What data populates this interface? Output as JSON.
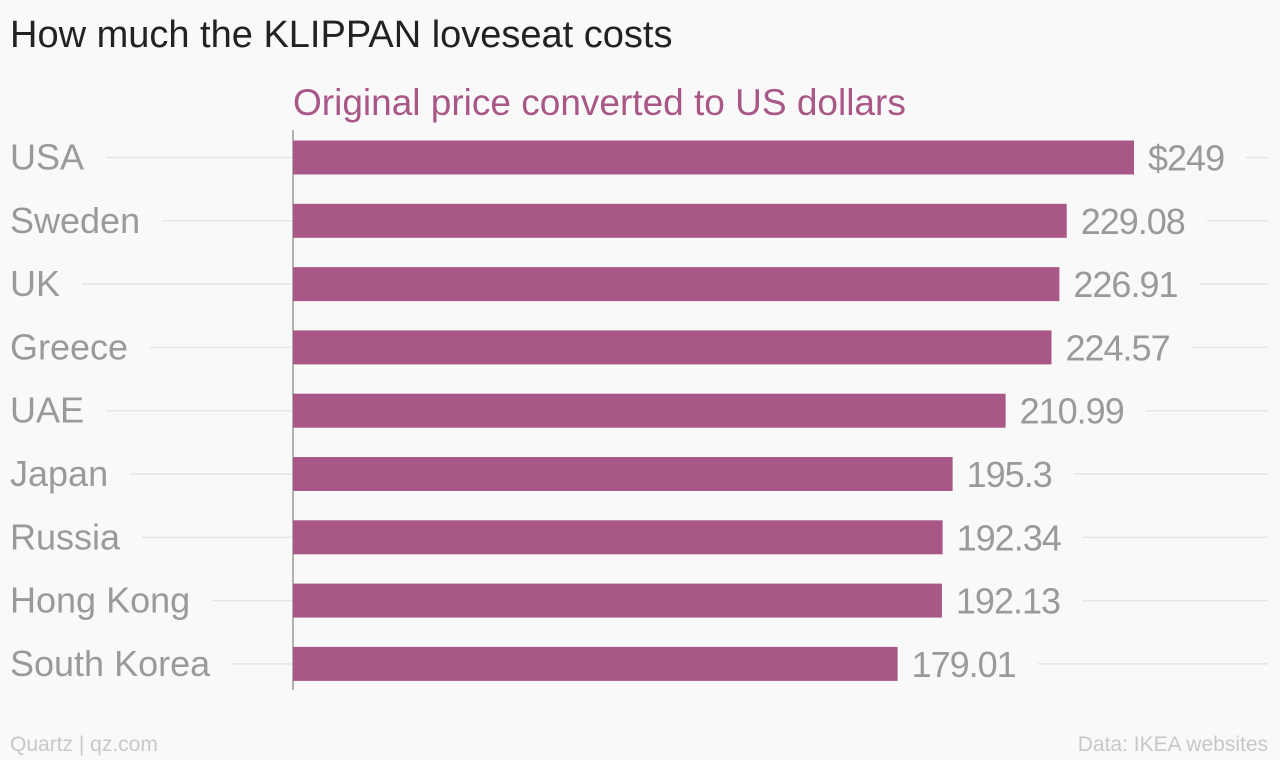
{
  "title": "How much the KLIPPAN loveseat costs",
  "footer": {
    "source": "Quartz | qz.com",
    "data_credit": "Data: IKEA websites"
  },
  "colors": {
    "bar": "#a85787",
    "series_label": "#a85787",
    "category_label": "#9a9a9a",
    "value_label": "#9a9a9a",
    "gridline": "#e6e6e6",
    "axis": "#999999"
  },
  "chart_data": {
    "type": "bar",
    "orientation": "horizontal",
    "categories": [
      "USA",
      "Sweden",
      "UK",
      "Greece",
      "UAE",
      "Japan",
      "Russia",
      "Hong Kong",
      "South Korea"
    ],
    "series": [
      {
        "name": "Original price converted to US dollars",
        "values": [
          249,
          229.08,
          226.91,
          224.57,
          210.99,
          195.3,
          192.34,
          192.13,
          179.01
        ],
        "value_labels": [
          "$249",
          "229.08",
          "226.91",
          "224.57",
          "210.99",
          "195.3",
          "192.34",
          "192.13",
          "179.01"
        ]
      }
    ],
    "xlim": [
      0,
      250
    ],
    "grid": true,
    "legend": "top"
  }
}
